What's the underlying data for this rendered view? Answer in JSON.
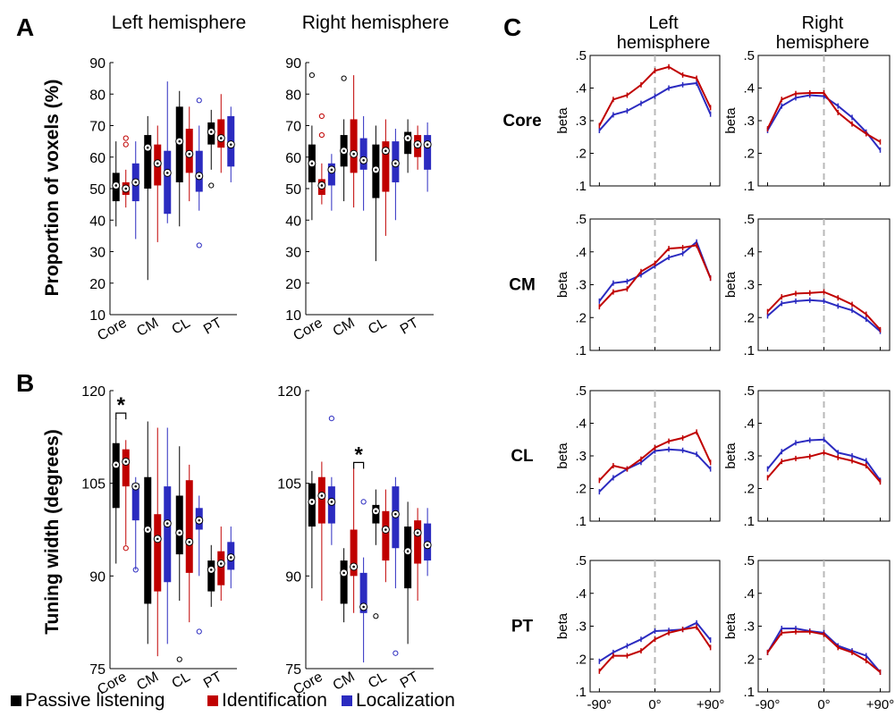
{
  "labels": {
    "panel_a": "A",
    "panel_b": "B",
    "panel_c": "C",
    "left_hemisphere": "Left hemisphere",
    "right_hemisphere": "Right hemisphere",
    "c_left_line1": "Left",
    "c_left_line2": "hemisphere",
    "c_right_line1": "Right",
    "c_right_line2": "hemisphere",
    "ylabel_a": "Proportion of voxels (%)",
    "ylabel_b": "Tuning width (degrees)",
    "beta": "beta",
    "star": "*"
  },
  "legend": [
    {
      "label": "Passive listening",
      "color": "#000000"
    },
    {
      "label": "Identification",
      "color": "#c00000"
    },
    {
      "label": "Localization",
      "color": "#2b2bc0"
    }
  ],
  "colors": {
    "passive": "#000000",
    "identification": "#c00000",
    "localization": "#2b2bc0"
  },
  "chart_data": [
    {
      "type": "box",
      "panel": "A-left",
      "categories": [
        "Core",
        "CM",
        "CL",
        "PT"
      ],
      "ylim": [
        10,
        90
      ],
      "yticks": [
        10,
        20,
        30,
        40,
        50,
        60,
        70,
        80,
        90
      ],
      "series": [
        {
          "name": "Passive listening",
          "boxes": [
            {
              "min": 38,
              "q1": 46,
              "median": 51,
              "q3": 55,
              "max": 65,
              "outliers": []
            },
            {
              "min": 21,
              "q1": 50,
              "median": 63,
              "q3": 67,
              "max": 73,
              "outliers": []
            },
            {
              "min": 38,
              "q1": 52,
              "median": 65,
              "q3": 76,
              "max": 81,
              "outliers": []
            },
            {
              "min": 56,
              "q1": 64,
              "median": 68,
              "q3": 71,
              "max": 75,
              "outliers": [
                51
              ]
            }
          ]
        },
        {
          "name": "Identification",
          "boxes": [
            {
              "min": 44,
              "q1": 48,
              "median": 50,
              "q3": 52,
              "max": 56,
              "outliers": [
                64,
                66
              ]
            },
            {
              "min": 33,
              "q1": 51,
              "median": 58,
              "q3": 64,
              "max": 70,
              "outliers": []
            },
            {
              "min": 46,
              "q1": 55,
              "median": 61,
              "q3": 69,
              "max": 76,
              "outliers": []
            },
            {
              "min": 55,
              "q1": 63,
              "median": 66,
              "q3": 72,
              "max": 80,
              "outliers": []
            }
          ]
        },
        {
          "name": "Localization",
          "boxes": [
            {
              "min": 34,
              "q1": 46,
              "median": 52,
              "q3": 58,
              "max": 65,
              "outliers": []
            },
            {
              "min": 39,
              "q1": 42,
              "median": 55,
              "q3": 62,
              "max": 84,
              "outliers": []
            },
            {
              "min": 43,
              "q1": 49,
              "median": 54,
              "q3": 62,
              "max": 70,
              "outliers": [
                32,
                78
              ]
            },
            {
              "min": 52,
              "q1": 57,
              "median": 64,
              "q3": 73,
              "max": 76,
              "outliers": []
            }
          ]
        }
      ]
    },
    {
      "type": "box",
      "panel": "A-right",
      "categories": [
        "Core",
        "CM",
        "CL",
        "PT"
      ],
      "ylim": [
        10,
        90
      ],
      "yticks": [
        10,
        20,
        30,
        40,
        50,
        60,
        70,
        80,
        90
      ],
      "series": [
        {
          "name": "Passive listening",
          "boxes": [
            {
              "min": 40,
              "q1": 52,
              "median": 58,
              "q3": 64,
              "max": 70,
              "outliers": [
                86
              ]
            },
            {
              "min": 46,
              "q1": 57,
              "median": 62,
              "q3": 67,
              "max": 72,
              "outliers": [
                85
              ]
            },
            {
              "min": 27,
              "q1": 47,
              "median": 56,
              "q3": 64,
              "max": 70,
              "outliers": []
            },
            {
              "min": 55,
              "q1": 61,
              "median": 66,
              "q3": 68,
              "max": 72,
              "outliers": []
            }
          ]
        },
        {
          "name": "Identification",
          "boxes": [
            {
              "min": 45,
              "q1": 48,
              "median": 51,
              "q3": 53,
              "max": 58,
              "outliers": [
                67,
                73
              ]
            },
            {
              "min": 44,
              "q1": 55,
              "median": 61,
              "q3": 72,
              "max": 86,
              "outliers": []
            },
            {
              "min": 35,
              "q1": 49,
              "median": 62,
              "q3": 65,
              "max": 72,
              "outliers": []
            },
            {
              "min": 56,
              "q1": 60,
              "median": 64,
              "q3": 67,
              "max": 70,
              "outliers": []
            }
          ]
        },
        {
          "name": "Localization",
          "boxes": [
            {
              "min": 43,
              "q1": 51,
              "median": 56,
              "q3": 58,
              "max": 61,
              "outliers": []
            },
            {
              "min": 43,
              "q1": 56,
              "median": 59,
              "q3": 66,
              "max": 73,
              "outliers": []
            },
            {
              "min": 40,
              "q1": 52,
              "median": 58,
              "q3": 65,
              "max": 69,
              "outliers": []
            },
            {
              "min": 49,
              "q1": 56,
              "median": 64,
              "q3": 67,
              "max": 71,
              "outliers": []
            }
          ]
        }
      ]
    },
    {
      "type": "box",
      "panel": "B-left",
      "categories": [
        "Core",
        "CM",
        "CL",
        "PT"
      ],
      "ylim": [
        75,
        120
      ],
      "yticks": [
        75,
        90,
        105,
        120
      ],
      "significance": {
        "category": "Core",
        "between": [
          "Passive listening",
          "Identification"
        ],
        "label": "*"
      },
      "series": [
        {
          "name": "Passive listening",
          "boxes": [
            {
              "min": 92,
              "q1": 101,
              "median": 108,
              "q3": 111.5,
              "max": 115.5,
              "outliers": []
            },
            {
              "min": 79,
              "q1": 85.5,
              "median": 97.5,
              "q3": 106,
              "max": 115,
              "outliers": []
            },
            {
              "min": 86,
              "q1": 93.5,
              "median": 97,
              "q3": 103,
              "max": 111,
              "outliers": [
                76.5
              ]
            },
            {
              "min": 85,
              "q1": 87.5,
              "median": 91,
              "q3": 92.5,
              "max": 95,
              "outliers": []
            }
          ]
        },
        {
          "name": "Identification",
          "boxes": [
            {
              "min": 95,
              "q1": 104.5,
              "median": 108.5,
              "q3": 110.5,
              "max": 112,
              "outliers": [
                94.5
              ]
            },
            {
              "min": 77,
              "q1": 87.5,
              "median": 96,
              "q3": 100,
              "max": 114,
              "outliers": []
            },
            {
              "min": 82.5,
              "q1": 90.5,
              "median": 95.5,
              "q3": 105.5,
              "max": 108,
              "outliers": []
            },
            {
              "min": 86,
              "q1": 88.5,
              "median": 92,
              "q3": 94,
              "max": 98,
              "outliers": []
            }
          ]
        },
        {
          "name": "Localization",
          "boxes": [
            {
              "min": 91,
              "q1": 99,
              "median": 104.5,
              "q3": 105,
              "max": 106,
              "outliers": [
                91
              ]
            },
            {
              "min": 79,
              "q1": 89,
              "median": 98.5,
              "q3": 104.5,
              "max": 114,
              "outliers": []
            },
            {
              "min": 90,
              "q1": 97.5,
              "median": 99,
              "q3": 101,
              "max": 103,
              "outliers": [
                81
              ]
            },
            {
              "min": 88,
              "q1": 91,
              "median": 93,
              "q3": 95.5,
              "max": 98,
              "outliers": []
            }
          ]
        }
      ]
    },
    {
      "type": "box",
      "panel": "B-right",
      "categories": [
        "Core",
        "CM",
        "CL",
        "PT"
      ],
      "ylim": [
        75,
        120
      ],
      "yticks": [
        75,
        90,
        105,
        120
      ],
      "significance": {
        "category": "CM",
        "between": [
          "Identification",
          "Localization"
        ],
        "label": "*"
      },
      "series": [
        {
          "name": "Passive listening",
          "boxes": [
            {
              "min": 88,
              "q1": 98,
              "median": 102,
              "q3": 105,
              "max": 107,
              "outliers": []
            },
            {
              "min": 82.5,
              "q1": 85.5,
              "median": 90.5,
              "q3": 92.5,
              "max": 94.5,
              "outliers": []
            },
            {
              "min": 95,
              "q1": 98.5,
              "median": 100.5,
              "q3": 101.5,
              "max": 104,
              "outliers": [
                83.5
              ]
            },
            {
              "min": 79,
              "q1": 88,
              "median": 94,
              "q3": 98,
              "max": 102,
              "outliers": []
            }
          ]
        },
        {
          "name": "Identification",
          "boxes": [
            {
              "min": 86,
              "q1": 98.5,
              "median": 103,
              "q3": 106,
              "max": 108.5,
              "outliers": []
            },
            {
              "min": 84,
              "q1": 90,
              "median": 91.5,
              "q3": 97.5,
              "max": 107.5,
              "outliers": []
            },
            {
              "min": 89,
              "q1": 92.5,
              "median": 97.5,
              "q3": 100.5,
              "max": 104,
              "outliers": []
            },
            {
              "min": 86,
              "q1": 92,
              "median": 97,
              "q3": 99,
              "max": 101,
              "outliers": []
            }
          ]
        },
        {
          "name": "Localization",
          "boxes": [
            {
              "min": 95,
              "q1": 98.5,
              "median": 102,
              "q3": 104.5,
              "max": 106,
              "outliers": [
                115.5
              ]
            },
            {
              "min": 76,
              "q1": 84,
              "median": 85,
              "q3": 90.5,
              "max": 93,
              "outliers": [
                102
              ]
            },
            {
              "min": 88,
              "q1": 94.5,
              "median": 100,
              "q3": 104.5,
              "max": 106,
              "outliers": [
                77.5
              ]
            },
            {
              "min": 90,
              "q1": 92.5,
              "median": 95,
              "q3": 98.5,
              "max": 101,
              "outliers": []
            }
          ]
        }
      ]
    },
    {
      "type": "line",
      "panel": "C",
      "ylabel": "beta",
      "ylim": [
        0.1,
        0.5
      ],
      "yticks": [
        0.1,
        0.2,
        0.3,
        0.4,
        0.5
      ],
      "ytick_labels": [
        ".1",
        ".2",
        ".3",
        ".4",
        ".5"
      ],
      "xlim": [
        -105,
        105
      ],
      "xticks": [
        -90,
        0,
        90
      ],
      "xtick_labels": [
        "-90°",
        "0°",
        "+90°"
      ],
      "x": [
        -90,
        -67.5,
        -45,
        -22.5,
        0,
        22.5,
        45,
        67.5,
        90
      ],
      "rows": [
        {
          "region": "Core",
          "left": {
            "Identification": [
              0.285,
              0.365,
              0.378,
              0.41,
              0.453,
              0.465,
              0.44,
              0.43,
              0.34
            ],
            "Localization": [
              0.27,
              0.318,
              0.33,
              0.353,
              0.375,
              0.4,
              0.41,
              0.415,
              0.32
            ]
          },
          "right": {
            "Identification": [
              0.275,
              0.365,
              0.383,
              0.385,
              0.385,
              0.325,
              0.29,
              0.26,
              0.235
            ],
            "Localization": [
              0.27,
              0.345,
              0.37,
              0.378,
              0.375,
              0.345,
              0.31,
              0.265,
              0.21
            ]
          }
        },
        {
          "region": "CM",
          "left": {
            "Identification": [
              0.233,
              0.278,
              0.287,
              0.34,
              0.365,
              0.41,
              0.413,
              0.42,
              0.32
            ],
            "Localization": [
              0.25,
              0.305,
              0.31,
              0.33,
              0.357,
              0.383,
              0.395,
              0.43,
              0.32
            ]
          },
          "right": {
            "Identification": [
              0.218,
              0.263,
              0.273,
              0.275,
              0.278,
              0.26,
              0.24,
              0.21,
              0.163
            ],
            "Localization": [
              0.205,
              0.243,
              0.25,
              0.253,
              0.25,
              0.235,
              0.222,
              0.195,
              0.158
            ]
          }
        },
        {
          "region": "CL",
          "left": {
            "Identification": [
              0.225,
              0.27,
              0.26,
              0.29,
              0.325,
              0.345,
              0.355,
              0.373,
              0.28
            ]
          },
          "left_loc": [
            0.19,
            0.233,
            0.26,
            0.28,
            0.315,
            0.32,
            0.317,
            0.305,
            0.26
          ],
          "right": {
            "Identification": [
              0.233,
              0.283,
              0.292,
              0.298,
              0.31,
              0.295,
              0.285,
              0.27,
              0.22
            ],
            "Localization": [
              0.26,
              0.313,
              0.34,
              0.348,
              0.35,
              0.31,
              0.3,
              0.285,
              0.225
            ]
          }
        },
        {
          "region": "PT",
          "left": {
            "Identification": [
              0.163,
              0.21,
              0.21,
              0.225,
              0.26,
              0.28,
              0.29,
              0.297,
              0.235
            ],
            "Localization": [
              0.193,
              0.22,
              0.24,
              0.26,
              0.285,
              0.287,
              0.29,
              0.31,
              0.258
            ]
          },
          "right": {
            "Identification": [
              0.22,
              0.28,
              0.283,
              0.283,
              0.275,
              0.235,
              0.22,
              0.195,
              0.16
            ],
            "Localization": [
              0.22,
              0.293,
              0.293,
              0.285,
              0.28,
              0.24,
              0.225,
              0.21,
              0.16
            ]
          }
        }
      ]
    }
  ]
}
